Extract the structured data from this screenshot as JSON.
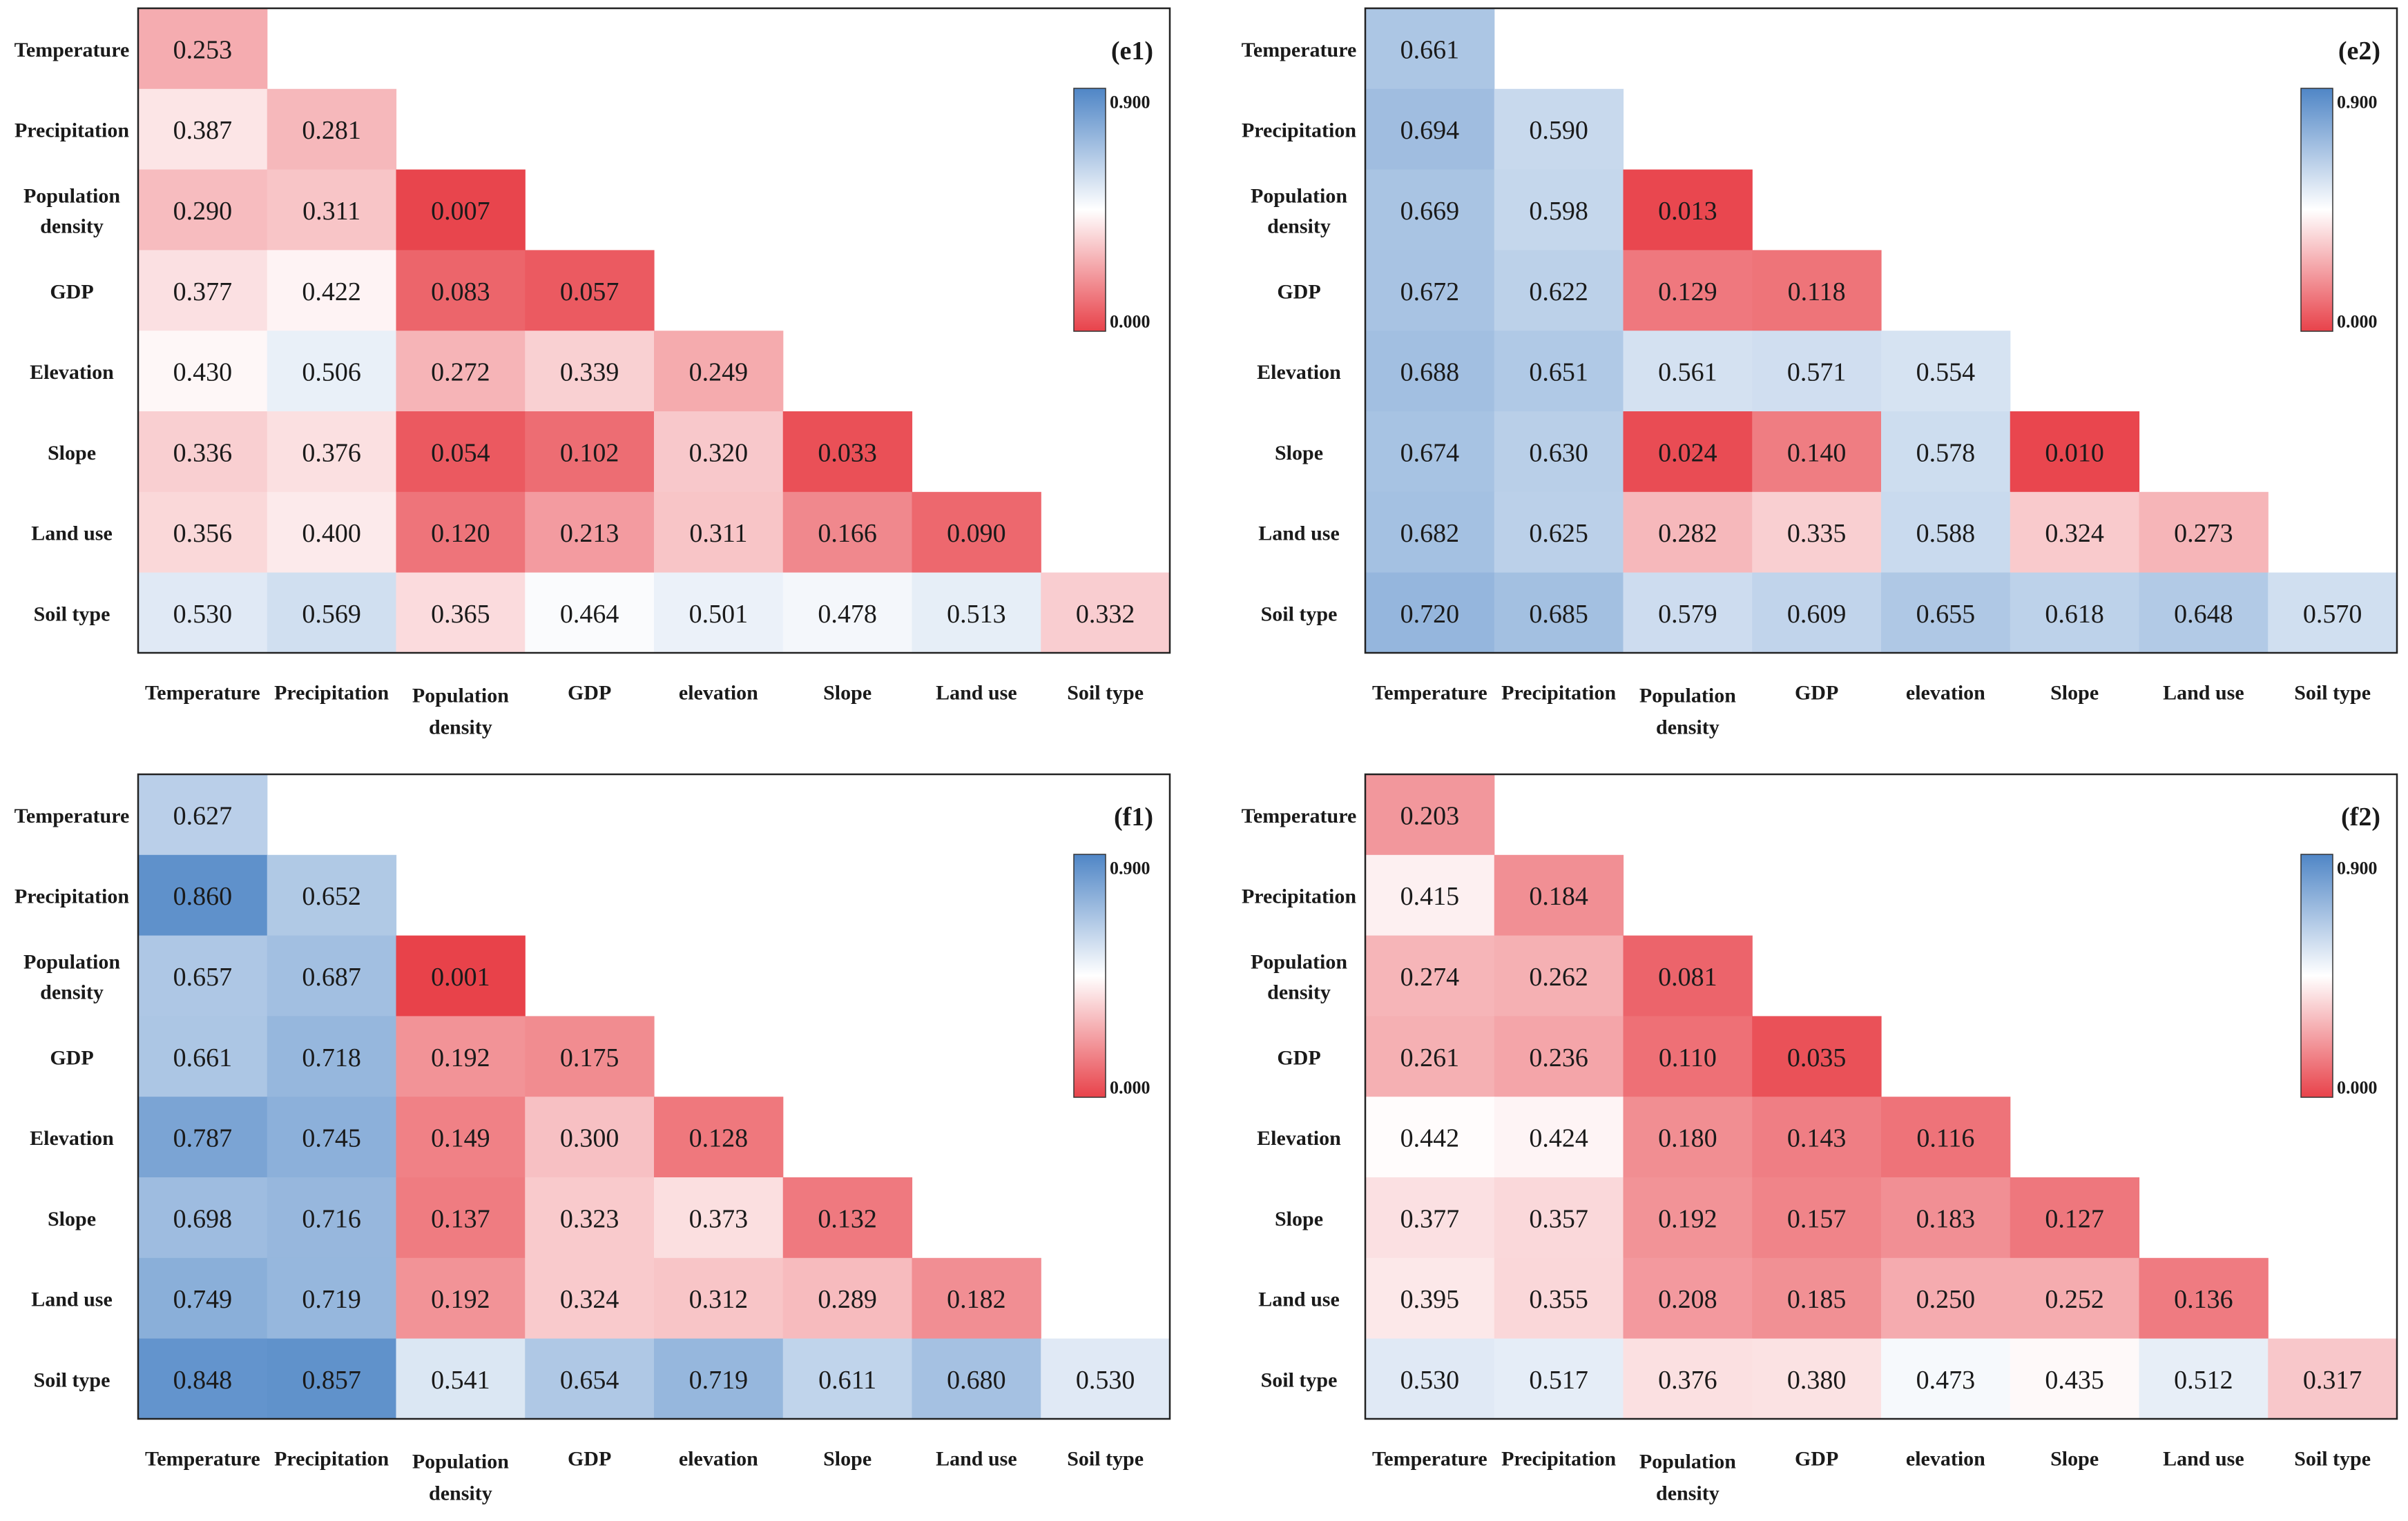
{
  "chart_data": [
    {
      "type": "heatmap",
      "panel_label": "(e1)",
      "row_labels": [
        "Temperature",
        "Precipitation",
        "Population density",
        "GDP",
        "Elevation",
        "Slope",
        "Land use",
        "Soil type"
      ],
      "col_labels": [
        "Temperature",
        "Precipitation",
        "Population density",
        "GDP",
        "elevation",
        "Slope",
        "Land use",
        "Soil type"
      ],
      "values": [
        [
          0.253
        ],
        [
          0.387,
          0.281
        ],
        [
          0.29,
          0.311,
          0.007
        ],
        [
          0.377,
          0.422,
          0.083,
          0.057
        ],
        [
          0.43,
          0.506,
          0.272,
          0.339,
          0.249
        ],
        [
          0.336,
          0.376,
          0.054,
          0.102,
          0.32,
          0.033
        ],
        [
          0.356,
          0.4,
          0.12,
          0.213,
          0.311,
          0.166,
          0.09
        ],
        [
          0.53,
          0.569,
          0.365,
          0.464,
          0.501,
          0.478,
          0.513,
          0.332
        ]
      ],
      "colorbar": {
        "min": 0.0,
        "max": 0.9,
        "min_label": "0.000",
        "max_label": "0.900",
        "low_color": "#e8424a",
        "mid_color": "#ffffff",
        "high_color": "#4f86c6"
      }
    },
    {
      "type": "heatmap",
      "panel_label": "(e2)",
      "row_labels": [
        "Temperature",
        "Precipitation",
        "Population density",
        "GDP",
        "Elevation",
        "Slope",
        "Land use",
        "Soil type"
      ],
      "col_labels": [
        "Temperature",
        "Precipitation",
        "Population density",
        "GDP",
        "elevation",
        "Slope",
        "Land use",
        "Soil type"
      ],
      "values": [
        [
          0.661
        ],
        [
          0.694,
          0.59
        ],
        [
          0.669,
          0.598,
          0.013
        ],
        [
          0.672,
          0.622,
          0.129,
          0.118
        ],
        [
          0.688,
          0.651,
          0.561,
          0.571,
          0.554
        ],
        [
          0.674,
          0.63,
          0.024,
          0.14,
          0.578,
          0.01
        ],
        [
          0.682,
          0.625,
          0.282,
          0.335,
          0.588,
          0.324,
          0.273
        ],
        [
          0.72,
          0.685,
          0.579,
          0.609,
          0.655,
          0.618,
          0.648,
          0.57
        ]
      ],
      "colorbar": {
        "min": 0.0,
        "max": 0.9,
        "min_label": "0.000",
        "max_label": "0.900",
        "low_color": "#e8424a",
        "mid_color": "#ffffff",
        "high_color": "#4f86c6"
      }
    },
    {
      "type": "heatmap",
      "panel_label": "(f1)",
      "row_labels": [
        "Temperature",
        "Precipitation",
        "Population density",
        "GDP",
        "Elevation",
        "Slope",
        "Land use",
        "Soil type"
      ],
      "col_labels": [
        "Temperature",
        "Precipitation",
        "Population density",
        "GDP",
        "elevation",
        "Slope",
        "Land use",
        "Soil type"
      ],
      "values": [
        [
          0.627
        ],
        [
          0.86,
          0.652
        ],
        [
          0.657,
          0.687,
          0.001
        ],
        [
          0.661,
          0.718,
          0.192,
          0.175
        ],
        [
          0.787,
          0.745,
          0.149,
          0.3,
          0.128
        ],
        [
          0.698,
          0.716,
          0.137,
          0.323,
          0.373,
          0.132
        ],
        [
          0.749,
          0.719,
          0.192,
          0.324,
          0.312,
          0.289,
          0.182
        ],
        [
          0.848,
          0.857,
          0.541,
          0.654,
          0.719,
          0.611,
          0.68,
          0.53
        ]
      ],
      "colorbar": {
        "min": 0.0,
        "max": 0.9,
        "min_label": "0.000",
        "max_label": "0.900",
        "low_color": "#e8424a",
        "mid_color": "#ffffff",
        "high_color": "#4f86c6"
      }
    },
    {
      "type": "heatmap",
      "panel_label": "(f2)",
      "row_labels": [
        "Temperature",
        "Precipitation",
        "Population density",
        "GDP",
        "Elevation",
        "Slope",
        "Land use",
        "Soil type"
      ],
      "col_labels": [
        "Temperature",
        "Precipitation",
        "Population density",
        "GDP",
        "elevation",
        "Slope",
        "Land use",
        "Soil type"
      ],
      "values": [
        [
          0.203
        ],
        [
          0.415,
          0.184
        ],
        [
          0.274,
          0.262,
          0.081
        ],
        [
          0.261,
          0.236,
          0.11,
          0.035
        ],
        [
          0.442,
          0.424,
          0.18,
          0.143,
          0.116
        ],
        [
          0.377,
          0.357,
          0.192,
          0.157,
          0.183,
          0.127
        ],
        [
          0.395,
          0.355,
          0.208,
          0.185,
          0.25,
          0.252,
          0.136
        ],
        [
          0.53,
          0.517,
          0.376,
          0.38,
          0.473,
          0.435,
          0.512,
          0.317
        ]
      ],
      "colorbar": {
        "min": 0.0,
        "max": 0.9,
        "min_label": "0.000",
        "max_label": "0.900",
        "low_color": "#e8424a",
        "mid_color": "#ffffff",
        "high_color": "#4f86c6"
      }
    }
  ]
}
